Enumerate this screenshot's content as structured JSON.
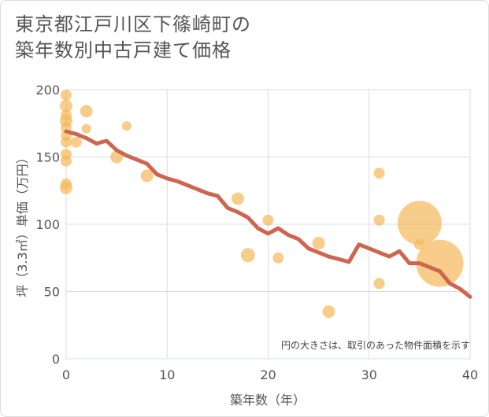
{
  "title_lines": [
    "東京都江戸川区下篠崎町の",
    "築年数別中古戸建て価格"
  ],
  "chart_data": {
    "type": "scatter",
    "xlabel": "築年数（年）",
    "ylabel": "坪（3.3㎡）単価（万円）",
    "xlim": [
      0,
      40
    ],
    "ylim": [
      0,
      200
    ],
    "x_ticks": [
      0,
      10,
      20,
      30,
      40
    ],
    "y_ticks": [
      0,
      50,
      100,
      150,
      200
    ],
    "grid": true,
    "note": "円の大きさは、取引のあった物件面積を示す",
    "colors": {
      "bubble": "#f5b85a",
      "trend": "#cd6651",
      "grid": "#d7dde6"
    },
    "points": [
      {
        "x": 0,
        "y": 196,
        "r": 7
      },
      {
        "x": 0,
        "y": 188,
        "r": 8
      },
      {
        "x": 0,
        "y": 181,
        "r": 7
      },
      {
        "x": 0,
        "y": 177,
        "r": 8
      },
      {
        "x": 0,
        "y": 172,
        "r": 7
      },
      {
        "x": 0,
        "y": 166,
        "r": 7
      },
      {
        "x": 0,
        "y": 161,
        "r": 7
      },
      {
        "x": 0,
        "y": 152,
        "r": 7
      },
      {
        "x": 0,
        "y": 147,
        "r": 7
      },
      {
        "x": 0,
        "y": 130,
        "r": 7
      },
      {
        "x": 0,
        "y": 127,
        "r": 8
      },
      {
        "x": 1,
        "y": 161,
        "r": 7
      },
      {
        "x": 2,
        "y": 184,
        "r": 8
      },
      {
        "x": 2,
        "y": 171,
        "r": 6
      },
      {
        "x": 6,
        "y": 173,
        "r": 6
      },
      {
        "x": 5,
        "y": 150,
        "r": 8
      },
      {
        "x": 8,
        "y": 136,
        "r": 8
      },
      {
        "x": 17,
        "y": 119,
        "r": 8
      },
      {
        "x": 18,
        "y": 77,
        "r": 9
      },
      {
        "x": 20,
        "y": 103,
        "r": 7
      },
      {
        "x": 21,
        "y": 75,
        "r": 7
      },
      {
        "x": 25,
        "y": 86,
        "r": 8
      },
      {
        "x": 26,
        "y": 35,
        "r": 8
      },
      {
        "x": 31,
        "y": 138,
        "r": 7
      },
      {
        "x": 31,
        "y": 103,
        "r": 7
      },
      {
        "x": 31,
        "y": 56,
        "r": 7
      },
      {
        "x": 35,
        "y": 85,
        "r": 7
      },
      {
        "x": 35,
        "y": 101,
        "r": 28
      },
      {
        "x": 37,
        "y": 71,
        "r": 30
      }
    ],
    "trend": {
      "x": [
        0,
        1,
        2,
        3,
        4,
        5,
        6,
        7,
        8,
        9,
        10,
        11,
        12,
        13,
        14,
        15,
        16,
        17,
        18,
        19,
        20,
        21,
        22,
        23,
        24,
        25,
        26,
        27,
        28,
        29,
        30,
        31,
        32,
        33,
        34,
        35,
        36,
        37,
        38,
        39,
        40
      ],
      "y": [
        169,
        167,
        164,
        160,
        162,
        155,
        151,
        148,
        145,
        137,
        134,
        132,
        129,
        126,
        123,
        121,
        112,
        109,
        105,
        97,
        93,
        97,
        92,
        89,
        82,
        79,
        76,
        74,
        72,
        85,
        82,
        79,
        76,
        80,
        71,
        71,
        68,
        65,
        56,
        52,
        46
      ]
    }
  }
}
